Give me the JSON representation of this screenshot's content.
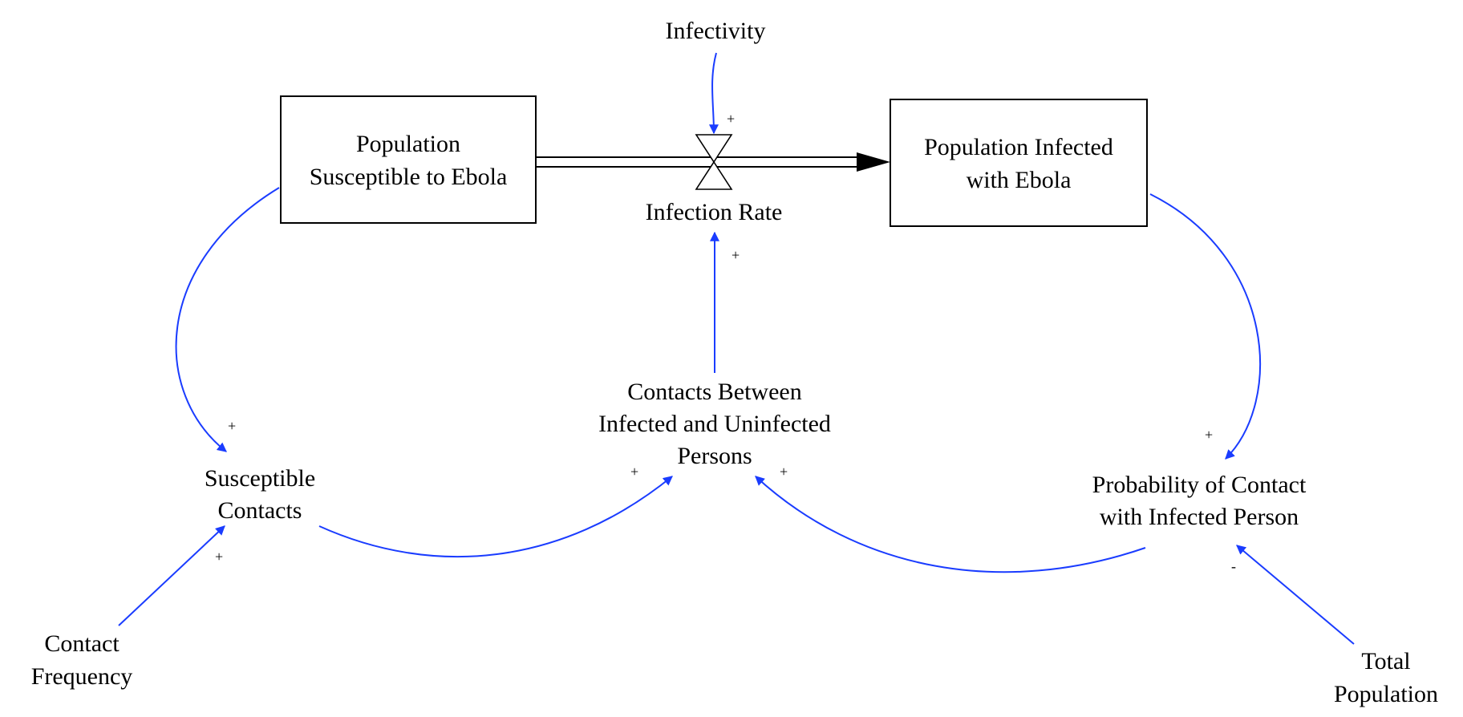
{
  "diagram": {
    "type": "stock-and-flow",
    "link_color": "#1a3cff",
    "flow_color": "#000000",
    "stocks": {
      "susceptible": {
        "line1": "Population",
        "line2": "Susceptible to Ebola"
      },
      "infected": {
        "line1": "Population Infected",
        "line2": "with Ebola"
      }
    },
    "flow": {
      "label": "Infection Rate"
    },
    "variables": {
      "infectivity": "Infectivity",
      "contacts_between": {
        "line1": "Contacts Between",
        "line2": "Infected and Uninfected",
        "line3": "Persons"
      },
      "susceptible_contacts": {
        "line1": "Susceptible",
        "line2": "Contacts"
      },
      "probability_contact": {
        "line1": "Probability of Contact",
        "line2": "with Infected Person"
      },
      "contact_frequency": {
        "line1": "Contact",
        "line2": "Frequency"
      },
      "total_population": {
        "line1": "Total",
        "line2": "Population"
      }
    },
    "polarities": {
      "infectivity_to_rate": "+",
      "contacts_to_rate": "+",
      "susceptible_to_contacts": "+",
      "frequency_to_contacts": "+",
      "susceptible_contacts_to_between": "+",
      "probability_to_between": "+",
      "infected_to_probability": "+",
      "total_to_probability": "-"
    }
  }
}
